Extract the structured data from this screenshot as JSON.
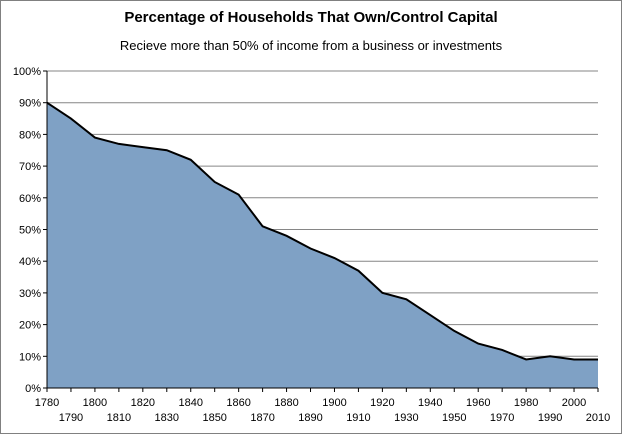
{
  "chart_data": {
    "type": "area",
    "title": "Percentage of Households That Own/Control Capital",
    "subtitle": "Recieve more than 50% of income from a business or investments",
    "xlabel": "",
    "ylabel": "",
    "x": [
      1780,
      1790,
      1800,
      1810,
      1820,
      1830,
      1840,
      1850,
      1860,
      1870,
      1880,
      1890,
      1900,
      1910,
      1920,
      1930,
      1940,
      1950,
      1960,
      1970,
      1980,
      1990,
      2000,
      2010
    ],
    "values": [
      90,
      85,
      79,
      77,
      76,
      75,
      72,
      65,
      61,
      51,
      48,
      44,
      41,
      37,
      30,
      28,
      23,
      18,
      14,
      12,
      9,
      10,
      9,
      9
    ],
    "xlim": [
      1780,
      2010
    ],
    "ylim": [
      0,
      100
    ],
    "y_ticks": [
      "0%",
      "10%",
      "20%",
      "30%",
      "40%",
      "50%",
      "60%",
      "70%",
      "80%",
      "90%",
      "100%"
    ],
    "x_ticks_top_row": [
      "1780",
      "1800",
      "1820",
      "1840",
      "1860",
      "1880",
      "1900",
      "1920",
      "1940",
      "1960",
      "1980",
      "2000"
    ],
    "x_ticks_bottom_row": [
      "1790",
      "1810",
      "1830",
      "1850",
      "1870",
      "1890",
      "1910",
      "1930",
      "1950",
      "1970",
      "1990",
      "2010"
    ],
    "grid": true,
    "legend": "none",
    "colors": {
      "fill": "#7fa1c5",
      "line": "#000000",
      "plot_bg": "#ffffff",
      "grid": "#868686"
    }
  }
}
